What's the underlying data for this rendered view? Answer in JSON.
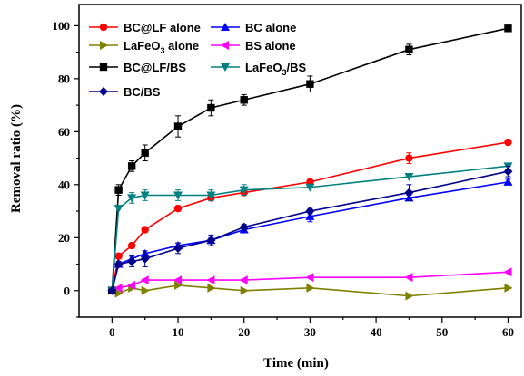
{
  "chart_data": {
    "type": "line",
    "xlabel": "Time (min)",
    "ylabel": "Removal ratio (%)",
    "xlim": [
      -5,
      62
    ],
    "ylim": [
      -10,
      108
    ],
    "x_ticks": [
      0,
      10,
      20,
      30,
      40,
      50,
      60
    ],
    "y_ticks": [
      0,
      20,
      40,
      60,
      80,
      100
    ],
    "legend_position": "top-left",
    "grid": false,
    "series": [
      {
        "name": "BC@LF alone",
        "color": "#ff0000",
        "marker": "circle",
        "x": [
          0,
          1,
          3,
          5,
          10,
          15,
          20,
          30,
          45,
          60
        ],
        "y": [
          0,
          13,
          17,
          23,
          31,
          35,
          37,
          41,
          50,
          56
        ],
        "err": [
          0,
          0,
          1,
          1,
          1,
          1,
          1,
          1,
          2,
          1
        ]
      },
      {
        "name": "BC alone",
        "color": "#0000ff",
        "marker": "triangle-up",
        "x": [
          0,
          1,
          3,
          5,
          10,
          15,
          20,
          30,
          45,
          60
        ],
        "y": [
          0,
          10,
          12,
          14,
          17,
          19,
          23,
          28,
          35,
          41
        ],
        "err": [
          0,
          0,
          1,
          1,
          1,
          1,
          1,
          2,
          1,
          1
        ]
      },
      {
        "name": "LaFeO3 alone",
        "label_main": "LaFeO",
        "label_sub": "3",
        "label_tail": " alone",
        "color": "#808000",
        "marker": "triangle-right",
        "x": [
          0,
          1,
          3,
          5,
          10,
          15,
          20,
          30,
          45,
          60
        ],
        "y": [
          0,
          -1,
          1,
          0,
          2,
          1,
          0,
          1,
          -2,
          1
        ],
        "err": [
          0,
          0,
          0,
          0,
          0,
          0,
          0,
          0,
          0,
          0
        ]
      },
      {
        "name": "BS alone",
        "color": "#ff00ff",
        "marker": "triangle-left",
        "x": [
          0,
          1,
          3,
          5,
          10,
          15,
          20,
          30,
          45,
          60
        ],
        "y": [
          0,
          1,
          2,
          4,
          4,
          4,
          4,
          5,
          5,
          7
        ],
        "err": [
          0,
          0,
          0,
          0,
          0,
          0,
          0,
          0,
          0,
          0
        ]
      },
      {
        "name": "BC@LF/BS",
        "color": "#000000",
        "marker": "square",
        "x": [
          0,
          1,
          3,
          5,
          10,
          15,
          20,
          30,
          45,
          60
        ],
        "y": [
          0,
          38,
          47,
          52,
          62,
          69,
          72,
          78,
          91,
          99
        ],
        "err": [
          0,
          2,
          2,
          3,
          4,
          3,
          2,
          3,
          2,
          0
        ]
      },
      {
        "name": "LaFeO3/BS",
        "label_main": "LaFeO",
        "label_sub": "3",
        "label_tail": "/BS",
        "color": "#008080",
        "marker": "triangle-down",
        "x": [
          0,
          1,
          3,
          5,
          10,
          15,
          20,
          30,
          45,
          60
        ],
        "y": [
          0,
          31,
          35,
          36,
          36,
          36,
          38,
          39,
          43,
          47
        ],
        "err": [
          0,
          0,
          2,
          2,
          2,
          2,
          2,
          0,
          0,
          0
        ]
      },
      {
        "name": "BC/BS",
        "color": "#00008b",
        "marker": "diamond",
        "x": [
          0,
          1,
          3,
          5,
          10,
          15,
          20,
          30,
          45,
          60
        ],
        "y": [
          0,
          10,
          11,
          12,
          16,
          19,
          24,
          30,
          37,
          45
        ],
        "err": [
          0,
          1,
          2,
          3,
          2,
          2,
          1,
          1,
          3,
          2
        ]
      }
    ]
  }
}
